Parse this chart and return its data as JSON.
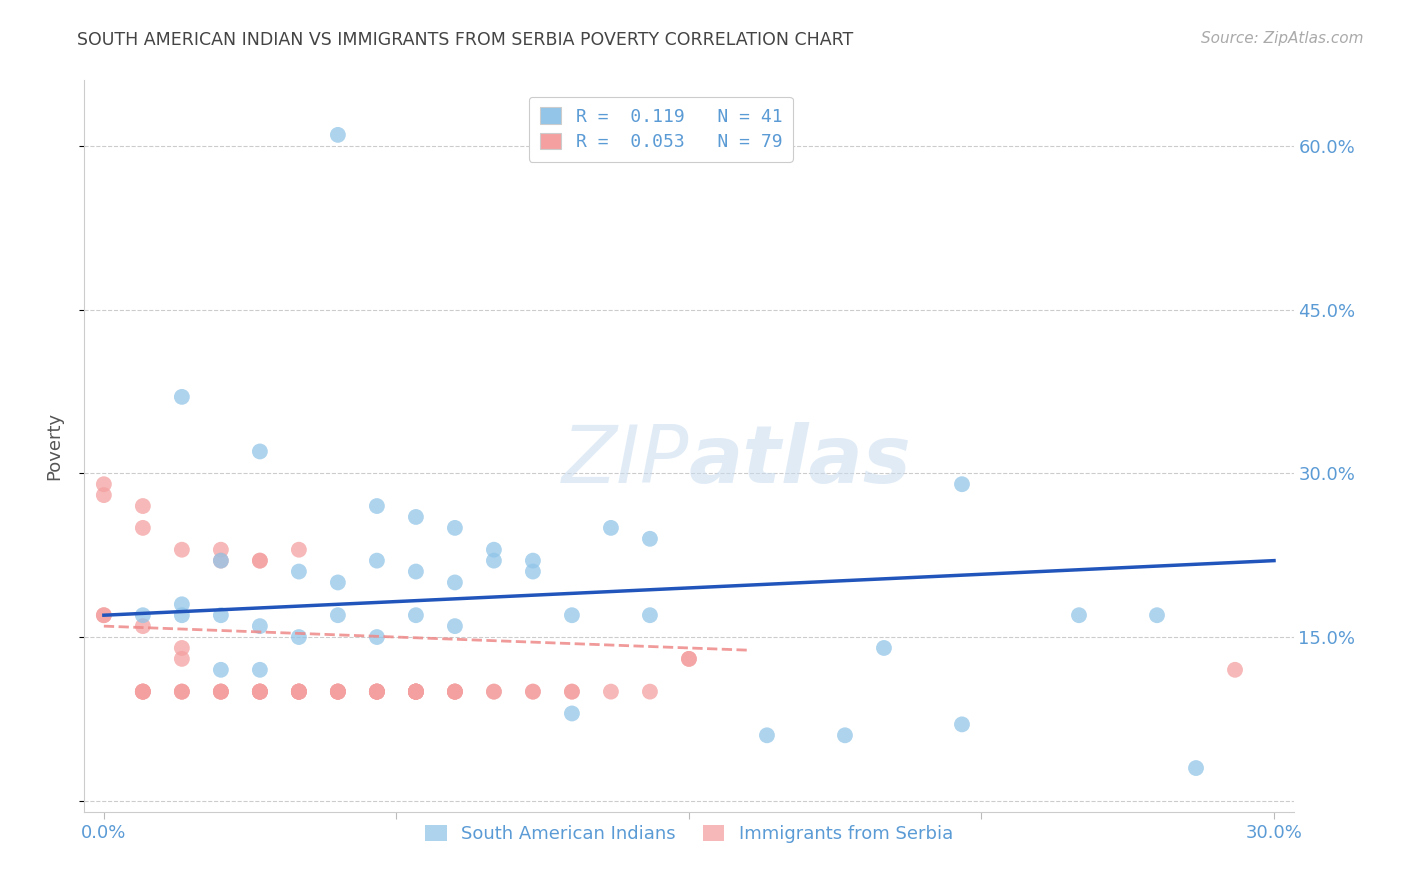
{
  "title": "SOUTH AMERICAN INDIAN VS IMMIGRANTS FROM SERBIA POVERTY CORRELATION CHART",
  "source": "Source: ZipAtlas.com",
  "ylabel": "Poverty",
  "y_ticks": [
    0.0,
    0.15,
    0.3,
    0.45,
    0.6
  ],
  "y_tick_labels": [
    "",
    "15.0%",
    "30.0%",
    "45.0%",
    "60.0%"
  ],
  "x_ticks": [
    0.0,
    0.075,
    0.15,
    0.225,
    0.3
  ],
  "x_tick_labels": [
    "0.0%",
    "",
    "",
    "",
    "30.0%"
  ],
  "xlim": [
    -0.005,
    0.305
  ],
  "ylim": [
    -0.01,
    0.66
  ],
  "legend_r1": "R =  0.119   N = 41",
  "legend_r2": "R =  0.053   N = 79",
  "watermark_zip": "ZIP",
  "watermark_atlas": "atlas",
  "blue_color": "#92C5E8",
  "pink_color": "#F4A0A0",
  "blue_line_color": "#2255BB",
  "pink_line_color": "#EE8888",
  "blue_scatter_x": [
    0.06,
    0.02,
    0.04,
    0.07,
    0.08,
    0.09,
    0.1,
    0.11,
    0.13,
    0.14,
    0.07,
    0.08,
    0.09,
    0.1,
    0.11,
    0.12,
    0.14,
    0.03,
    0.05,
    0.06,
    0.02,
    0.03,
    0.04,
    0.05,
    0.06,
    0.07,
    0.08,
    0.09,
    0.01,
    0.02,
    0.03,
    0.04,
    0.12,
    0.17,
    0.19,
    0.22,
    0.25,
    0.27,
    0.22,
    0.28,
    0.2
  ],
  "blue_scatter_y": [
    0.61,
    0.37,
    0.32,
    0.27,
    0.26,
    0.25,
    0.23,
    0.22,
    0.25,
    0.24,
    0.22,
    0.21,
    0.2,
    0.22,
    0.21,
    0.17,
    0.17,
    0.22,
    0.21,
    0.2,
    0.18,
    0.17,
    0.16,
    0.15,
    0.17,
    0.15,
    0.17,
    0.16,
    0.17,
    0.17,
    0.12,
    0.12,
    0.08,
    0.06,
    0.06,
    0.07,
    0.17,
    0.17,
    0.29,
    0.03,
    0.14
  ],
  "pink_scatter_x": [
    0.0,
    0.0,
    0.0,
    0.0,
    0.01,
    0.01,
    0.01,
    0.01,
    0.01,
    0.01,
    0.01,
    0.02,
    0.02,
    0.02,
    0.02,
    0.02,
    0.03,
    0.03,
    0.03,
    0.03,
    0.03,
    0.03,
    0.04,
    0.04,
    0.04,
    0.04,
    0.04,
    0.04,
    0.04,
    0.04,
    0.05,
    0.05,
    0.05,
    0.05,
    0.05,
    0.05,
    0.05,
    0.05,
    0.06,
    0.06,
    0.06,
    0.06,
    0.06,
    0.06,
    0.07,
    0.07,
    0.07,
    0.07,
    0.07,
    0.07,
    0.07,
    0.08,
    0.08,
    0.08,
    0.08,
    0.08,
    0.08,
    0.08,
    0.08,
    0.08,
    0.08,
    0.09,
    0.09,
    0.09,
    0.09,
    0.09,
    0.1,
    0.1,
    0.11,
    0.11,
    0.12,
    0.12,
    0.13,
    0.14,
    0.15,
    0.15,
    0.01,
    0.02,
    0.29
  ],
  "pink_scatter_y": [
    0.17,
    0.17,
    0.28,
    0.29,
    0.1,
    0.1,
    0.1,
    0.1,
    0.1,
    0.25,
    0.27,
    0.1,
    0.1,
    0.1,
    0.13,
    0.23,
    0.1,
    0.1,
    0.1,
    0.1,
    0.23,
    0.22,
    0.1,
    0.1,
    0.1,
    0.1,
    0.1,
    0.22,
    0.22,
    0.1,
    0.1,
    0.1,
    0.1,
    0.1,
    0.1,
    0.1,
    0.23,
    0.1,
    0.1,
    0.1,
    0.1,
    0.1,
    0.1,
    0.1,
    0.1,
    0.1,
    0.1,
    0.1,
    0.1,
    0.1,
    0.1,
    0.1,
    0.1,
    0.1,
    0.1,
    0.1,
    0.1,
    0.1,
    0.1,
    0.1,
    0.1,
    0.1,
    0.1,
    0.1,
    0.1,
    0.1,
    0.1,
    0.1,
    0.1,
    0.1,
    0.1,
    0.1,
    0.1,
    0.1,
    0.13,
    0.13,
    0.16,
    0.14,
    0.12
  ],
  "blue_trend_x": [
    0.0,
    0.3
  ],
  "blue_trend_y": [
    0.17,
    0.22
  ],
  "pink_trend_x": [
    0.0,
    0.165
  ],
  "pink_trend_y": [
    0.16,
    0.138
  ],
  "background_color": "#ffffff",
  "grid_color": "#cccccc",
  "title_color": "#444444",
  "tick_label_color": "#5B9BD5",
  "axis_label_color": "#555555",
  "source_color": "#aaaaaa",
  "legend_edge_color": "#cccccc"
}
